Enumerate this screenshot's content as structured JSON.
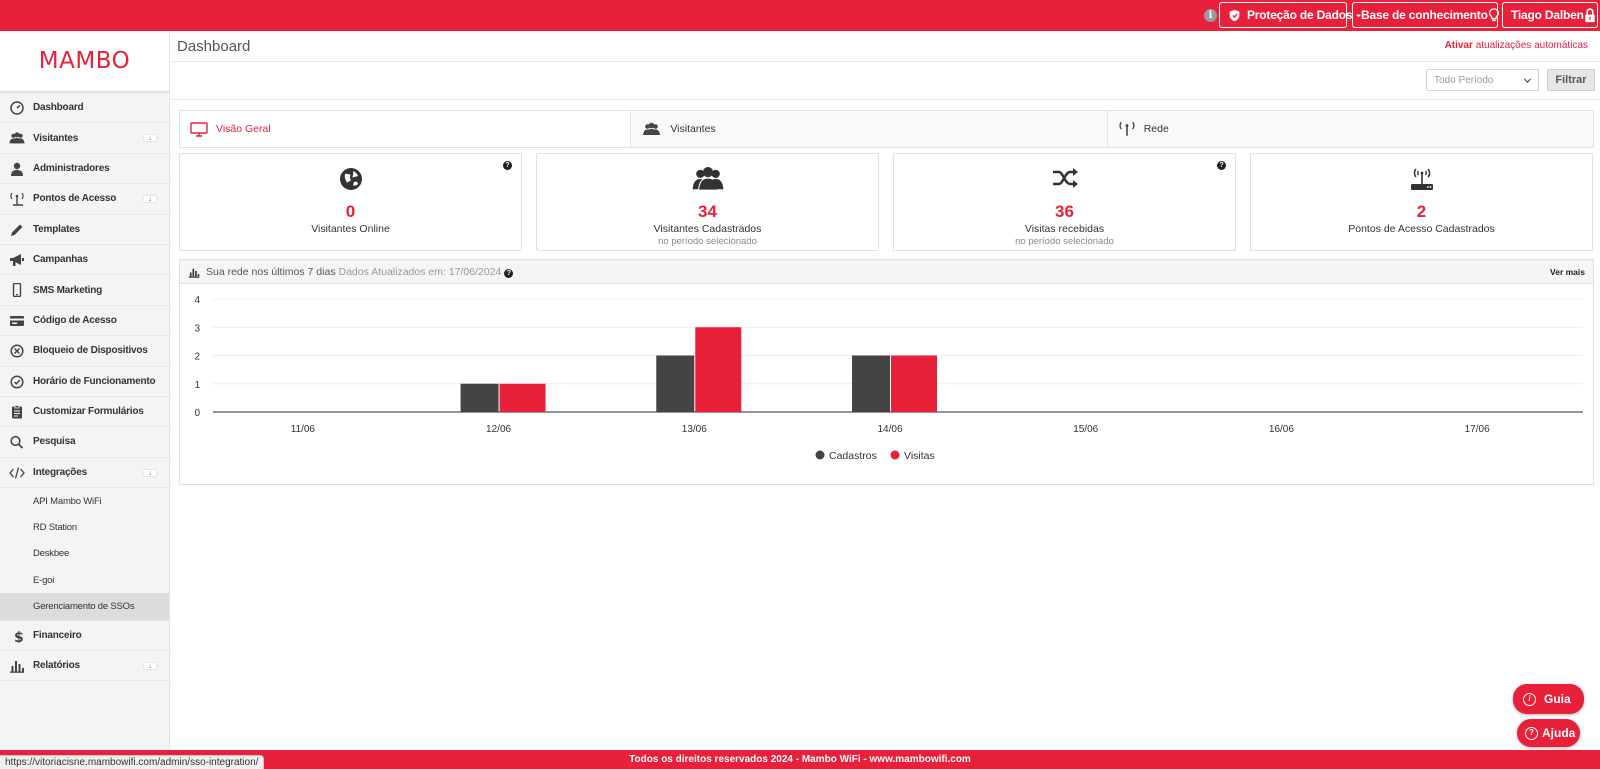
{
  "topbar": {
    "info_icon": "i",
    "protecao_label": "Proteção de Dados",
    "base_label": "Base de conhecimento",
    "user_label": "Tiago Dalben",
    "accent": "#e8203a"
  },
  "sidebar": {
    "logo": "MAMBO",
    "items": [
      {
        "label": "Dashboard",
        "icon": "dashboard-icon"
      },
      {
        "label": "Visitantes",
        "icon": "users-icon",
        "expand": "↓"
      },
      {
        "label": "Administradores",
        "icon": "user-icon"
      },
      {
        "label": "Pontos de Acesso",
        "icon": "antenna-icon",
        "expand": "↓"
      },
      {
        "label": "Templates",
        "icon": "pencil-icon"
      },
      {
        "label": "Campanhas",
        "icon": "megaphone-icon"
      },
      {
        "label": "SMS Marketing",
        "icon": "phone-icon"
      },
      {
        "label": "Código de Acesso",
        "icon": "card-icon"
      },
      {
        "label": "Bloqueio de Dispositivos",
        "icon": "block-icon"
      },
      {
        "label": "Horário de Funcionamento",
        "icon": "clock-icon"
      },
      {
        "label": "Customizar Formulários",
        "icon": "clipboard-icon"
      },
      {
        "label": "Pesquisa",
        "icon": "search-icon"
      },
      {
        "label": "Integrações",
        "icon": "code-icon",
        "expand": "↓"
      }
    ],
    "sub_items": [
      "API Mambo WiFi",
      "RD Station",
      "Deskbee",
      "E-goi",
      "Gerenciamento de SSOs"
    ],
    "bottom_items": [
      {
        "label": "Financeiro",
        "icon": "dollar-icon"
      },
      {
        "label": "Relatórios",
        "icon": "bar-chart-icon",
        "expand": "↓"
      }
    ]
  },
  "header": {
    "title": "Dashboard",
    "auto_update_action": "Ativar",
    "auto_update_text": "atualizações automáticas"
  },
  "filter": {
    "period": "Todo Período",
    "button": "Filtrar"
  },
  "tabs": [
    {
      "label": "Visão Geral",
      "icon": "monitor-icon",
      "active": true
    },
    {
      "label": "Visitantes",
      "icon": "users-icon"
    },
    {
      "label": "Rede",
      "icon": "antenna-icon"
    }
  ],
  "cards": [
    {
      "value": "0",
      "label": "Visitantes Online",
      "sub": "",
      "icon": "globe-icon",
      "help": "?"
    },
    {
      "value": "34",
      "label": "Visitantes Cadastrados",
      "sub": "no período selecionado",
      "icon": "users-icon"
    },
    {
      "value": "36",
      "label": "Visitas recebidas",
      "sub": "no período selecionado",
      "icon": "shuffle-icon",
      "help": "?"
    },
    {
      "value": "2",
      "label": "Pontos de Acesso Cadastrados",
      "sub": "",
      "icon": "router-icon"
    }
  ],
  "chart_panel": {
    "title": "Sua rede nos últimos 7 dias",
    "updated": "Dados Atualizados em: 17/06/2024",
    "help": "?",
    "ver_mais": "Ver mais"
  },
  "chart_data": {
    "type": "bar",
    "categories": [
      "11/06",
      "12/06",
      "13/06",
      "14/06",
      "15/06",
      "16/06",
      "17/06"
    ],
    "series": [
      {
        "name": "Cadastros",
        "values": [
          0,
          1,
          2,
          2,
          0,
          0,
          0
        ],
        "color": "#444444"
      },
      {
        "name": "Visitas",
        "values": [
          0,
          1,
          3,
          2,
          0,
          0,
          0
        ],
        "color": "#e8203a"
      }
    ],
    "yticks": [
      0,
      1,
      2,
      3,
      4
    ],
    "ylim": [
      0,
      4
    ],
    "legend": "bottom"
  },
  "footer": {
    "text": "Todos os direitos reservados 2024 - Mambo WiFi - www.mambowifi.com",
    "status_url": "https://vitoriacisne.mambowifi.com/admin/sso-integration/"
  },
  "floating": {
    "guia": "Guia",
    "guia_icon": "i",
    "ajuda": "Ajuda",
    "ajuda_icon": "?"
  }
}
